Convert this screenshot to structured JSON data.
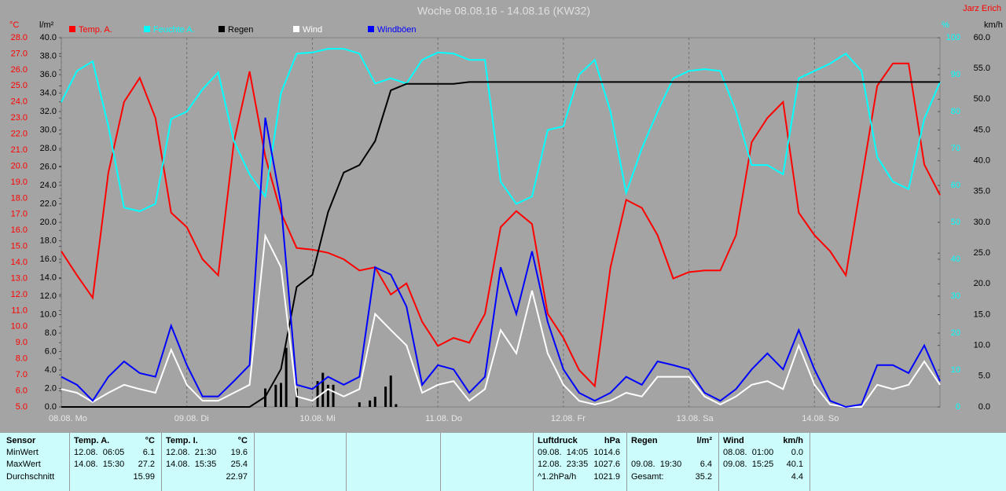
{
  "chart_data": {
    "type": "line",
    "title": "Woche 08.08.16 - 14.08.16 (KW32)",
    "author": "Jarz Erich",
    "units": {
      "y": "°C",
      "y2": "l/m²",
      "y3": "%",
      "y4": "km/h"
    },
    "xlim": [
      0,
      168
    ],
    "xticks": [
      {
        "value": 0,
        "label": "08.08. Mo"
      },
      {
        "value": 24,
        "label": "09.08. Di"
      },
      {
        "value": 48,
        "label": "10.08. Mi"
      },
      {
        "value": 72,
        "label": "11.08. Do"
      },
      {
        "value": 96,
        "label": "12.08. Fr"
      },
      {
        "value": 120,
        "label": "13.08. Sa"
      },
      {
        "value": 144,
        "label": "14.08. So"
      }
    ],
    "grid": "x",
    "ylim": [
      5,
      28
    ],
    "yticks": [
      {
        "value": 5,
        "label": "5.0"
      },
      {
        "value": 6,
        "label": "6.0"
      },
      {
        "value": 7,
        "label": "7.0"
      },
      {
        "value": 8,
        "label": "8.0"
      },
      {
        "value": 9,
        "label": "9.0"
      },
      {
        "value": 10,
        "label": "10.0"
      },
      {
        "value": 11,
        "label": "11.0"
      },
      {
        "value": 12,
        "label": "12.0"
      },
      {
        "value": 13,
        "label": "13.0"
      },
      {
        "value": 14,
        "label": "14.0"
      },
      {
        "value": 15,
        "label": "15.0"
      },
      {
        "value": 16,
        "label": "16.0"
      },
      {
        "value": 17,
        "label": "17.0"
      },
      {
        "value": 18,
        "label": "18.0"
      },
      {
        "value": 19,
        "label": "19.0"
      },
      {
        "value": 20,
        "label": "20.0"
      },
      {
        "value": 21,
        "label": "21.0"
      },
      {
        "value": 22,
        "label": "22.0"
      },
      {
        "value": 23,
        "label": "23.0"
      },
      {
        "value": 24,
        "label": "24.0"
      },
      {
        "value": 25,
        "label": "25.0"
      },
      {
        "value": 26,
        "label": "26.0"
      },
      {
        "value": 27,
        "label": "27.0"
      },
      {
        "value": 28,
        "label": "28.0"
      }
    ],
    "y2lim": [
      0,
      40
    ],
    "y2ticks": [
      {
        "value": 0,
        "label": "0.0"
      },
      {
        "value": 2,
        "label": "2.0"
      },
      {
        "value": 4,
        "label": "4.0"
      },
      {
        "value": 6,
        "label": "6.0"
      },
      {
        "value": 8,
        "label": "8.0"
      },
      {
        "value": 10,
        "label": "10.0"
      },
      {
        "value": 12,
        "label": "12.0"
      },
      {
        "value": 14,
        "label": "14.0"
      },
      {
        "value": 16,
        "label": "16.0"
      },
      {
        "value": 18,
        "label": "18.0"
      },
      {
        "value": 20,
        "label": "20.0"
      },
      {
        "value": 22,
        "label": "22.0"
      },
      {
        "value": 24,
        "label": "24.0"
      },
      {
        "value": 26,
        "label": "26.0"
      },
      {
        "value": 28,
        "label": "28.0"
      },
      {
        "value": 30,
        "label": "30.0"
      },
      {
        "value": 32,
        "label": "32.0"
      },
      {
        "value": 34,
        "label": "34.0"
      },
      {
        "value": 36,
        "label": "36.0"
      },
      {
        "value": 38,
        "label": "38.0"
      },
      {
        "value": 40,
        "label": "40.0"
      }
    ],
    "y3lim": [
      0,
      100
    ],
    "y3ticks": [
      0,
      10,
      20,
      30,
      40,
      50,
      60,
      70,
      80,
      90,
      100
    ],
    "y4lim": [
      0,
      60
    ],
    "y4ticks": [
      {
        "value": 0,
        "label": "0.0"
      },
      {
        "value": 5,
        "label": "5.0"
      },
      {
        "value": 10,
        "label": "10.0"
      },
      {
        "value": 15,
        "label": "15.0"
      },
      {
        "value": 20,
        "label": "20.0"
      },
      {
        "value": 25,
        "label": "25.0"
      },
      {
        "value": 30,
        "label": "30.0"
      },
      {
        "value": 35,
        "label": "35.0"
      },
      {
        "value": 40,
        "label": "40.0"
      },
      {
        "value": 45,
        "label": "45.0"
      },
      {
        "value": 50,
        "label": "50.0"
      },
      {
        "value": 55,
        "label": "55.0"
      },
      {
        "value": 60,
        "label": "60.0"
      }
    ],
    "x": [
      0,
      3,
      6,
      9,
      12,
      15,
      18,
      21,
      24,
      27,
      30,
      33,
      36,
      39,
      42,
      45,
      48,
      51,
      54,
      57,
      60,
      63,
      66,
      69,
      72,
      75,
      78,
      81,
      84,
      87,
      90,
      93,
      96,
      99,
      102,
      105,
      108,
      111,
      114,
      117,
      120,
      123,
      126,
      129,
      132,
      135,
      138,
      141,
      144,
      147,
      150,
      153,
      156,
      159,
      162,
      165,
      168
    ],
    "series": [
      {
        "name": "Temp. A.",
        "color": "#ff0000",
        "axis": "y",
        "values": [
          14.7,
          13.2,
          11.8,
          19.6,
          24.0,
          25.5,
          23.0,
          17.1,
          16.2,
          14.2,
          13.2,
          21.5,
          25.9,
          20.6,
          17.1,
          14.9,
          14.8,
          14.6,
          14.2,
          13.5,
          13.7,
          12.0,
          12.7,
          10.3,
          8.8,
          9.3,
          9.0,
          10.8,
          16.2,
          17.2,
          16.4,
          10.8,
          9.3,
          7.3,
          6.3,
          13.7,
          17.9,
          17.4,
          15.7,
          13.0,
          13.4,
          13.5,
          13.5,
          15.7,
          21.5,
          23.0,
          24.0,
          17.1,
          15.7,
          14.7,
          13.2,
          19.1,
          25.0,
          26.4,
          26.4,
          20.1,
          18.2
        ]
      },
      {
        "name": "Feuchte A.",
        "color": "#00ffff",
        "axis": "y3",
        "values": [
          82.6,
          91,
          93.6,
          76,
          54,
          53,
          55,
          78,
          80,
          86,
          90.6,
          72,
          63,
          57,
          85,
          95.7,
          96,
          97,
          97,
          95.7,
          87.6,
          89,
          87.6,
          94,
          96,
          95.7,
          94,
          94,
          61,
          55,
          57,
          75,
          76,
          90,
          94,
          80,
          58,
          70,
          80,
          89,
          91,
          91.5,
          91,
          80,
          65.5,
          65.5,
          63,
          89,
          91,
          93,
          95.7,
          91,
          67.7,
          61,
          59,
          78,
          88
        ]
      },
      {
        "name": "Regen",
        "color": "#000000",
        "axis": "y2",
        "values": [
          0,
          0,
          0,
          0,
          0,
          0,
          0,
          0,
          0,
          0,
          0,
          0,
          0,
          1.1,
          4.1,
          13.0,
          14.3,
          21.1,
          25.4,
          26.2,
          28.8,
          34.3,
          35.0,
          35.0,
          35.0,
          35.0,
          35.2,
          35.2,
          35.2,
          35.2,
          35.2,
          35.2,
          35.2,
          35.2,
          35.2,
          35.2,
          35.2,
          35.2,
          35.2,
          35.2,
          35.2,
          35.2,
          35.2,
          35.2,
          35.2,
          35.2,
          35.2,
          35.2,
          35.2,
          35.2,
          35.2,
          35.2,
          35.2,
          35.2,
          35.2,
          35.2,
          35.2
        ]
      },
      {
        "name": "Wind",
        "color": "#ffffff",
        "axis": "y4",
        "values": [
          2.9,
          2.3,
          0.8,
          2.3,
          3.6,
          2.9,
          2.3,
          9.3,
          3.6,
          1.0,
          1.0,
          2.3,
          3.6,
          27.8,
          22.7,
          1.7,
          1.0,
          2.9,
          1.7,
          2.9,
          15.1,
          12.5,
          10,
          2.3,
          3.6,
          4.2,
          1.0,
          2.9,
          12.5,
          8.7,
          18.9,
          8.7,
          3.6,
          1.0,
          0.4,
          1.0,
          2.3,
          1.7,
          4.9,
          4.9,
          4.9,
          1.7,
          0.4,
          1.7,
          3.6,
          4.2,
          2.9,
          10,
          3.6,
          0.4,
          0,
          0,
          3.6,
          2.9,
          3.6,
          7.4,
          3.6
        ]
      },
      {
        "name": "Windböen",
        "color": "#0000ff",
        "axis": "y4",
        "values": [
          4.9,
          3.6,
          1.0,
          4.9,
          7.4,
          5.5,
          4.9,
          13.2,
          6.8,
          1.7,
          1.7,
          4.2,
          6.8,
          47,
          33,
          3.6,
          2.9,
          4.9,
          3.6,
          4.9,
          22.7,
          21.5,
          16.3,
          3.6,
          6.8,
          6.1,
          2.3,
          4.9,
          22.7,
          15.1,
          25.3,
          13.8,
          6.1,
          2.3,
          1.0,
          2.3,
          4.9,
          3.6,
          7.4,
          6.8,
          6.1,
          2.3,
          1.0,
          2.9,
          6.1,
          8.7,
          6.1,
          12.5,
          6.1,
          1.0,
          0,
          0.4,
          6.8,
          6.8,
          5.5,
          10,
          4.2
        ]
      }
    ],
    "rain_bars": {
      "color": "#000000",
      "axis": "y2",
      "x": [
        39,
        41,
        42,
        43,
        45,
        49,
        50,
        51,
        52,
        57,
        59,
        60,
        62,
        63,
        64
      ],
      "values": [
        2.0,
        2.4,
        2.6,
        6.4,
        2.0,
        2.8,
        3.7,
        2.4,
        2.4,
        0.5,
        0.7,
        1.1,
        2.2,
        3.4,
        0.3
      ]
    }
  },
  "stats": {
    "row_labels": [
      "Sensor",
      "MinWert",
      "MaxWert",
      "Durchschnitt"
    ],
    "panels": [
      {
        "title": "Temp. A.",
        "unit": "°C",
        "rows": [
          [
            "12.08.  06:05",
            "6.1"
          ],
          [
            "14.08.  15:30",
            "27.2"
          ],
          [
            "15.99"
          ]
        ]
      },
      {
        "title": "Temp. I.",
        "unit": "°C",
        "rows": [
          [
            "12.08.  21:30",
            "19.6"
          ],
          [
            "14.08.  15:35",
            "25.4"
          ],
          [
            "22.97"
          ]
        ]
      },
      {
        "title": "Luftdruck",
        "unit": "hPa",
        "rows": [
          [
            "09.08.  14:05",
            "1014.6"
          ],
          [
            "12.08.  23:35",
            "1027.6"
          ],
          [
            "^1.2hPa/h",
            "1021.9"
          ]
        ]
      },
      {
        "title": "Regen",
        "unit": "l/m²",
        "rows": [
          null,
          [
            "09.08.  19:30",
            "6.4"
          ],
          [
            "Gesamt:",
            "35.2"
          ]
        ]
      },
      {
        "title": "Wind",
        "unit": "km/h",
        "rows": [
          [
            "08.08.  01:00",
            "0.0"
          ],
          [
            "09.08.  15:25",
            "40.1"
          ],
          [
            "4.4"
          ]
        ]
      }
    ]
  }
}
